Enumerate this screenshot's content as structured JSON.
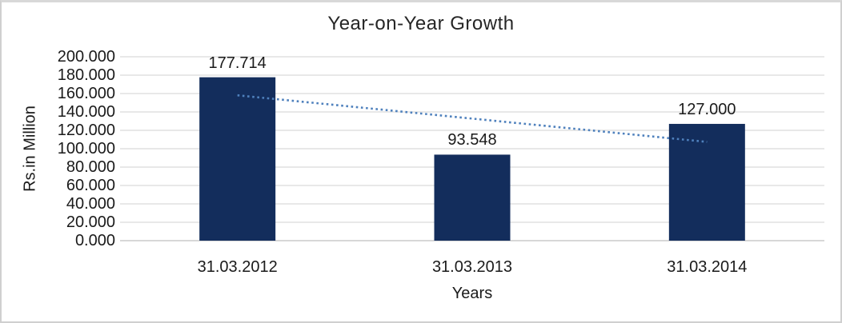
{
  "chart_data": {
    "type": "bar",
    "title": "Year-on-Year Growth",
    "categories": [
      "31.03.2012",
      "31.03.2013",
      "31.03.2014"
    ],
    "values": [
      177.714,
      93.548,
      127.0
    ],
    "value_labels": [
      "177.714",
      "93.548",
      "127.000"
    ],
    "xlabel": "Years",
    "ylabel": "Rs.in Million",
    "ylim": [
      0,
      200
    ],
    "ytick_step": 20,
    "ytick_labels_top_to_bottom": [
      "200.000",
      "180.000",
      "160.000",
      "140.000",
      "120.000",
      "100.000",
      "80.000",
      "60.000",
      "40.000",
      "20.000",
      "0.000"
    ],
    "grid": true,
    "legend": "none",
    "trendline": {
      "type": "linear",
      "style": "dotted",
      "start_value": 158.1,
      "end_value": 107.4
    },
    "colors": {
      "bar": "#132d5c",
      "trendline": "#4f81bd",
      "gridline": "#d9d9d9",
      "axis_line": "#bfbfbf",
      "text": "#1a1a1a",
      "title_text": "#262626",
      "frame_border": "#cfcfcf",
      "background": "#ffffff"
    }
  }
}
